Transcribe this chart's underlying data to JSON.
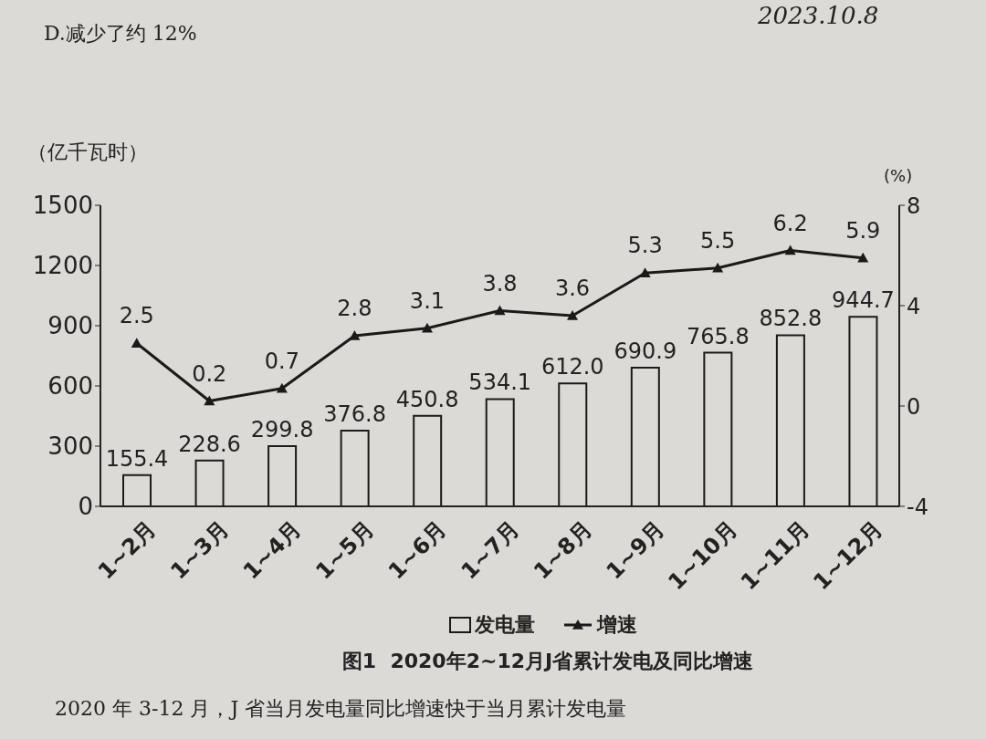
{
  "chart_data": {
    "type": "bar",
    "title": "图1  2020年2~12月J省累计发电及同比增速",
    "ylabel": "（亿千瓦时）",
    "y2label": "(%)",
    "annotations": [
      "D.减少了约 12%",
      "2023.10.8",
      "2020 年 3-12 月，J 省当月发电量同比增速快于当月累计发电量"
    ],
    "categories": [
      "1~2月",
      "1~3月",
      "1~4月",
      "1~5月",
      "1~6月",
      "1~7月",
      "1~8月",
      "1~9月",
      "1~10月",
      "1~11月",
      "1~12月"
    ],
    "series": [
      {
        "name": "发电量",
        "color": "#1a1a1a",
        "values": [
          155.4,
          228.6,
          299.8,
          376.8,
          450.8,
          534.1,
          612.0,
          690.9,
          765.8,
          852.8,
          944.7
        ],
        "value_labels": [
          "155.4",
          "228.6",
          "299.8",
          "376.8",
          "450.8",
          "534.1",
          "612.0",
          "690.9",
          "765.8",
          "852.8",
          "944.7"
        ]
      },
      {
        "name": "增速",
        "type": "line",
        "axis": "y2",
        "color": "#1a1a1a",
        "values": [
          2.5,
          0.2,
          0.7,
          2.8,
          3.1,
          3.8,
          3.6,
          5.3,
          5.5,
          6.2,
          5.9
        ],
        "value_labels": [
          "2.5",
          "0.2",
          "0.7",
          "2.8",
          "3.1",
          "3.8",
          "3.6",
          "5.3",
          "5.5",
          "6.2",
          "5.9"
        ]
      }
    ],
    "ylim": [
      0,
      1500
    ],
    "yticks": [
      0,
      300,
      600,
      900,
      1200,
      1500
    ],
    "y2lim": [
      -4,
      8
    ],
    "y2ticks": [
      -4,
      0,
      4,
      8
    ],
    "legend": "bottom",
    "marker": "triangle",
    "line_style": "solid"
  }
}
